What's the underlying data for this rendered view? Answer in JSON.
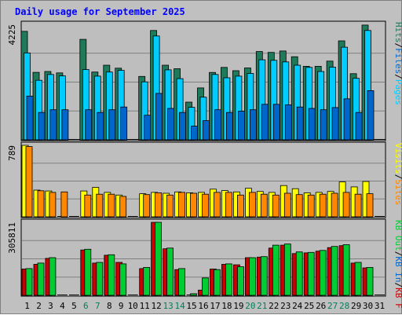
{
  "chart_data": {
    "type": "bar",
    "title": "Daily usage for September 2025",
    "categories": [
      "1",
      "2",
      "3",
      "4",
      "5",
      "6",
      "7",
      "8",
      "9",
      "10",
      "11",
      "12",
      "13",
      "14",
      "15",
      "16",
      "17",
      "18",
      "19",
      "20",
      "21",
      "22",
      "23",
      "24",
      "25",
      "26",
      "27",
      "28",
      "29",
      "30",
      "31"
    ],
    "weekend_days": [
      "6",
      "7",
      "13",
      "14",
      "20",
      "21",
      "27",
      "28"
    ],
    "colors": {
      "hits": "#1f7a5a",
      "files": "#00ccff",
      "pages": "#0066cc",
      "visits": "#ffff00",
      "sites": "#ff8800",
      "kb_in": "#cc0000",
      "kb_out": "#00cc33",
      "weekday_label": "#000000",
      "weekend_label": "#00805a",
      "title": "#0000ff",
      "background": "#c0c0c0",
      "plot_background": "#bebebe"
    },
    "panels": [
      {
        "max_label": "4225",
        "ymax": 4225,
        "legend": [
          {
            "text": "Pages",
            "color": "#00ccff"
          },
          {
            "text": "/",
            "color": "#000000"
          },
          {
            "text": "Files",
            "color": "#0066cc"
          },
          {
            "text": "/",
            "color": "#000000"
          },
          {
            "text": "Hits",
            "color": "#1f7a5a"
          }
        ],
        "series": [
          {
            "key": "hits",
            "values": [
              3970,
              2470,
              2500,
              2450,
              0,
              3675,
              2480,
              2730,
              2620,
              0,
              2320,
              4000,
              2730,
              2600,
              1380,
              1900,
              2465,
              2650,
              2530,
              2630,
              3230,
              3200,
              3250,
              3040,
              2690,
              2690,
              2880,
              3620,
              2420,
              4200,
              0
            ]
          },
          {
            "key": "files",
            "values": [
              3180,
              2180,
              2390,
              2340,
              0,
              2570,
              2330,
              2480,
              2540,
              0,
              2120,
              3800,
              2560,
              2240,
              1190,
              1560,
              2390,
              2270,
              2330,
              2430,
              2930,
              2910,
              2850,
              2730,
              2650,
              2500,
              2660,
              3390,
              2250,
              4000,
              0
            ]
          },
          {
            "key": "pages",
            "values": [
              1600,
              1000,
              1100,
              1100,
              0,
              1100,
              1000,
              1100,
              1200,
              0,
              900,
              1700,
              1150,
              1000,
              500,
              700,
              1100,
              1000,
              1050,
              1100,
              1300,
              1300,
              1280,
              1200,
              1150,
              1100,
              1180,
              1500,
              1000,
              1800,
              0
            ]
          }
        ]
      },
      {
        "max_label": "789",
        "ymax": 789,
        "legend": [
          {
            "text": "Sites",
            "color": "#ff8800"
          },
          {
            "text": "/",
            "color": "#000000"
          },
          {
            "text": "Visits",
            "color": "#ffff00"
          }
        ],
        "series": [
          {
            "key": "visits",
            "values": [
              789,
              295,
              285,
              0,
              0,
              285,
              325,
              270,
              240,
              0,
              255,
              270,
              260,
              275,
              265,
              270,
              305,
              290,
              275,
              315,
              280,
              270,
              345,
              310,
              265,
              270,
              280,
              385,
              330,
              390,
              0
            ]
          },
          {
            "key": "sites",
            "values": [
              775,
              288,
              270,
              275,
              0,
              240,
              250,
              250,
              225,
              0,
              245,
              265,
              240,
              270,
              260,
              250,
              270,
              270,
              240,
              270,
              250,
              240,
              260,
              245,
              240,
              250,
              260,
              270,
              250,
              255,
              0
            ]
          }
        ]
      },
      {
        "max_label": "305811",
        "ymax": 305811,
        "legend": [
          {
            "text": "KB F",
            "color": "#cc0000"
          },
          {
            "text": "/",
            "color": "#000000"
          },
          {
            "text": "KB In",
            "color": "#0066cc"
          },
          {
            "text": "/",
            "color": "#000000"
          },
          {
            "text": "KB Out",
            "color": "#00cc33"
          }
        ],
        "series": [
          {
            "key": "kb_in",
            "values": [
              110000,
              130000,
              155000,
              0,
              0,
              190000,
              135000,
              168000,
              138000,
              0,
              112000,
              305811,
              195000,
              108000,
              0,
              22000,
              110000,
              130000,
              128000,
              158000,
              160000,
              198000,
              210000,
              175000,
              178000,
              185000,
              200000,
              208000,
              135000,
              115000,
              0
            ]
          },
          {
            "key": "kb_out",
            "values": [
              112000,
              135000,
              158000,
              0,
              0,
              193000,
              138000,
              170000,
              132000,
              0,
              117000,
              305811,
              198000,
              112000,
              7000,
              73000,
              108000,
              132000,
              120000,
              158000,
              162000,
              210000,
              215000,
              182000,
              180000,
              188000,
              205000,
              212000,
              138000,
              117000,
              0
            ]
          }
        ]
      }
    ]
  }
}
